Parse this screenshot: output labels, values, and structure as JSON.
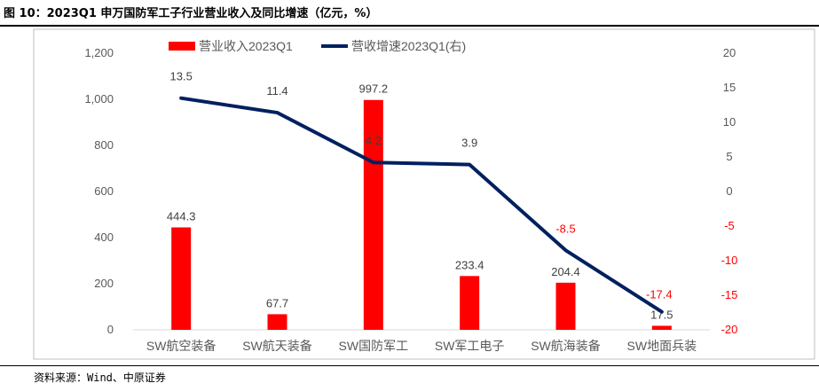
{
  "header": {
    "title": "图 10：2023Q1 申万国防军工子行业营业收入及同比增速（亿元，%）"
  },
  "footer": {
    "source": "资料来源：Wind、中原证券"
  },
  "colors": {
    "bar": "#ff0000",
    "line": "#002060",
    "negative_label": "#ff0000",
    "axis_text": "#595959",
    "border": "#bfbfbf"
  },
  "chart_data": {
    "type": "bar",
    "categories": [
      "SW航空装备",
      "SW航天装备",
      "SW国防军工",
      "SW军工电子",
      "SW航海装备",
      "SW地面兵装"
    ],
    "series": [
      {
        "name": "营业收入2023Q1",
        "type": "bar",
        "axis": "left",
        "values": [
          444.3,
          67.7,
          997.2,
          233.4,
          204.4,
          17.5
        ],
        "labels": [
          "444.3",
          "67.7",
          "997.2",
          "233.4",
          "204.4",
          "17.5"
        ]
      },
      {
        "name": "营收增速2023Q1(右)",
        "type": "line",
        "axis": "right",
        "values": [
          13.5,
          11.4,
          4.2,
          3.9,
          -8.5,
          -17.4
        ],
        "labels": [
          "13.5",
          "11.4",
          "4.2",
          "3.9",
          "-8.5",
          "-17.4"
        ]
      }
    ],
    "y_left": {
      "ylim": [
        0,
        1200
      ],
      "ticks": [
        0,
        200,
        400,
        600,
        800,
        1000,
        1200
      ],
      "tick_labels": [
        "0",
        "200",
        "400",
        "600",
        "800",
        "1,000",
        "1,200"
      ]
    },
    "y_right": {
      "ylim": [
        -20,
        20
      ],
      "ticks": [
        -20,
        -15,
        -10,
        -5,
        0,
        5,
        10,
        15,
        20
      ],
      "tick_labels": [
        "-20",
        "-15",
        "-10",
        "-5",
        "0",
        "5",
        "10",
        "15",
        "20"
      ]
    },
    "legend": "top",
    "grid": false
  }
}
